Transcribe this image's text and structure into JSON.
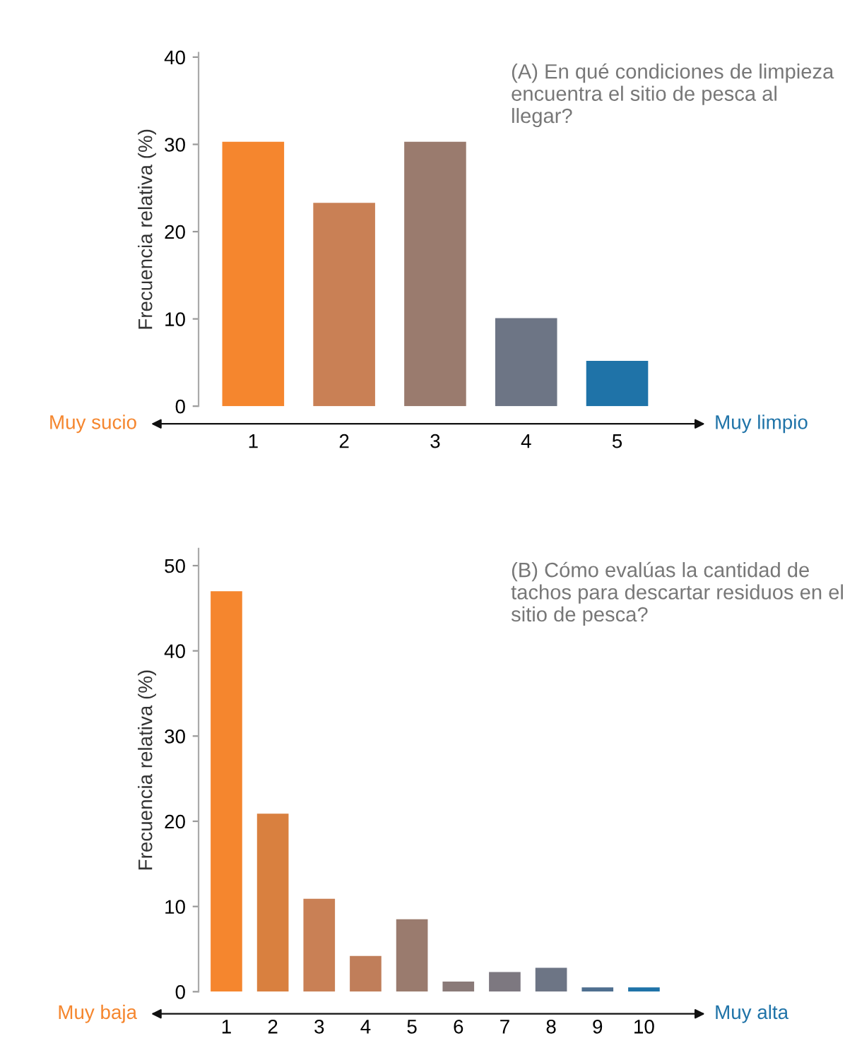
{
  "chart_data": [
    {
      "type": "bar",
      "title": "(A) En qué condiciones de limpieza encuentra el sitio de pesca al llegar?",
      "ylabel": "Frecuencia relativa (%)",
      "categories": [
        "1",
        "2",
        "3",
        "4",
        "5"
      ],
      "values": [
        30.3,
        23.3,
        30.3,
        10.1,
        5.2
      ],
      "colors": [
        "#f5862e",
        "#c98055",
        "#9a7b6e",
        "#6d7585",
        "#1f73a8"
      ],
      "ylim": [
        0,
        40.5
      ],
      "yticks": [
        0,
        10,
        20,
        30,
        40
      ],
      "annotations": [
        "Muy sucio",
        "Muy limpio"
      ]
    },
    {
      "type": "bar",
      "title": "(B) Cómo evalúas la cantidad de tachos para descartar residuos en el sitio de pesca?",
      "ylabel": "Frecuencia relativa (%)",
      "categories": [
        "1",
        "2",
        "3",
        "4",
        "5",
        "6",
        "7",
        "8",
        "9",
        "10"
      ],
      "values": [
        47.0,
        20.9,
        10.9,
        4.2,
        8.5,
        1.2,
        2.3,
        2.8,
        0.5,
        0.5
      ],
      "colors": [
        "#f5862e",
        "#d9803f",
        "#c98055",
        "#c07e5a",
        "#9a7b6e",
        "#8a7a78",
        "#7d7880",
        "#6d7585",
        "#4f6f8f",
        "#1f73a8"
      ],
      "ylim": [
        0,
        52
      ],
      "yticks": [
        0,
        10,
        20,
        30,
        40,
        50
      ],
      "annotations": [
        "Muy baja",
        "Muy alta"
      ]
    }
  ]
}
